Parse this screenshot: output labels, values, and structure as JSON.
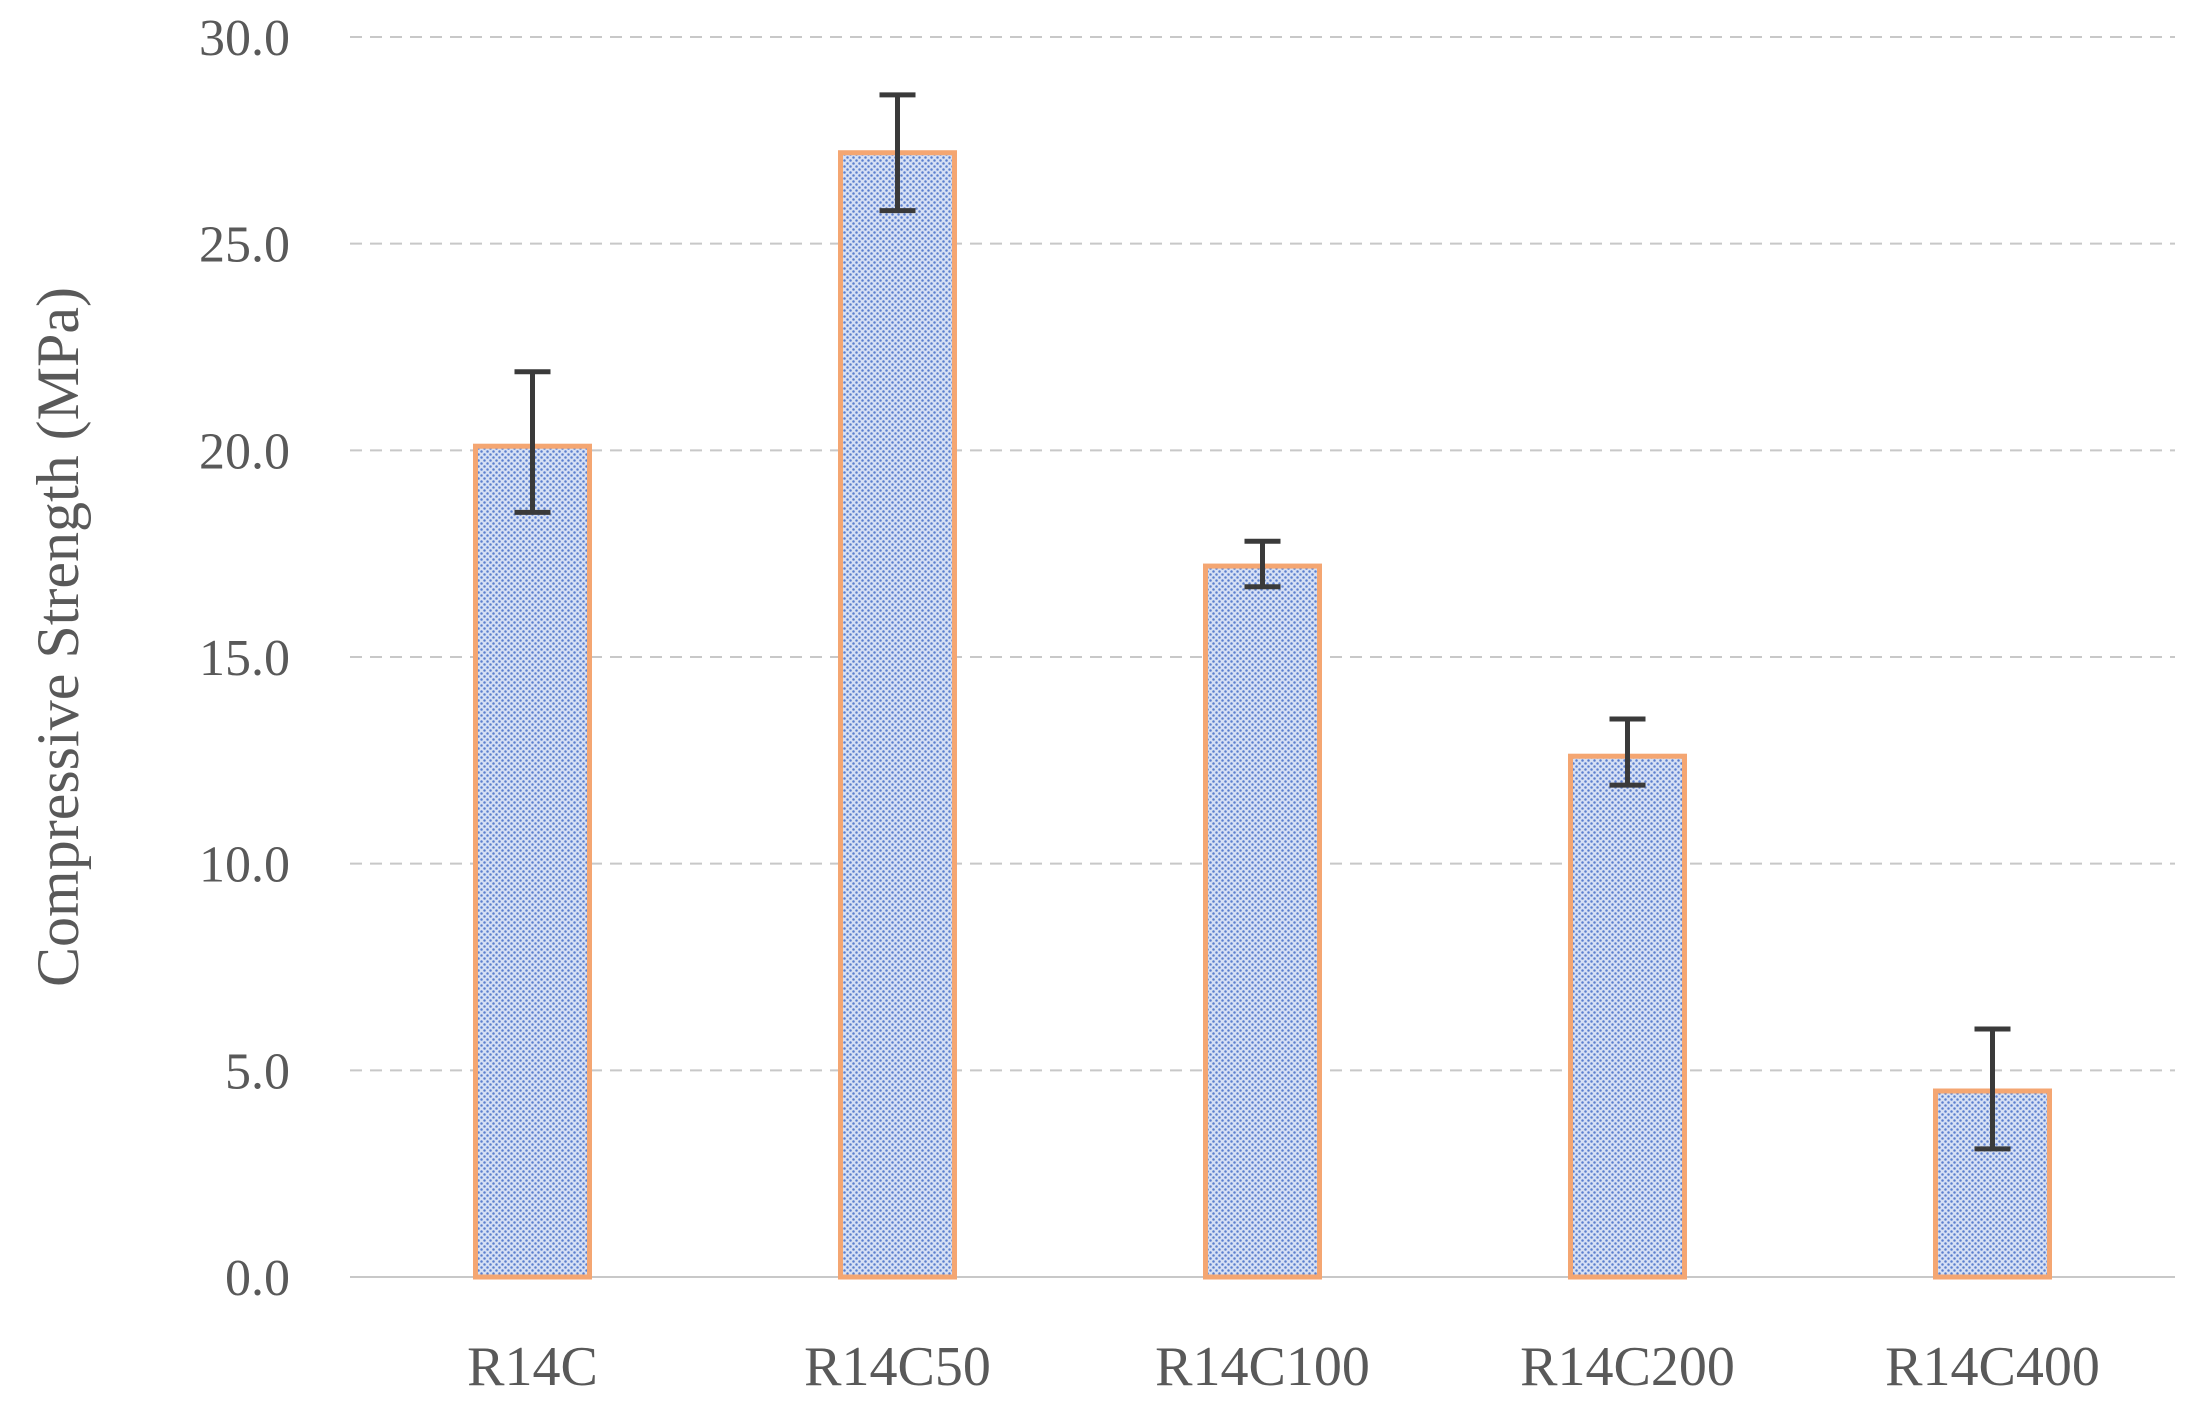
{
  "chart_data": {
    "type": "bar",
    "title": "",
    "xlabel": "",
    "ylabel": "Compressive Strength (MPa)",
    "ylim": [
      0,
      30
    ],
    "yticks": [
      "0.0",
      "5.0",
      "10.0",
      "15.0",
      "20.0",
      "25.0",
      "30.0"
    ],
    "categories": [
      "R14C",
      "R14C50",
      "R14C100",
      "R14C200",
      "R14C400"
    ],
    "values": [
      20.1,
      27.2,
      17.2,
      12.6,
      4.5
    ],
    "error_low": [
      18.5,
      25.8,
      16.7,
      11.9,
      3.1
    ],
    "error_high": [
      21.9,
      28.6,
      17.8,
      13.5,
      6.0
    ],
    "grid": "horizontal dashed",
    "legend": "none",
    "colors": {
      "bar_fill": "#d6e0f4",
      "bar_dots": "#5b7fce",
      "bar_outline": "#f4a672",
      "error_bar": "#3a3a3a",
      "grid": "#c8c8c8",
      "text": "#595959"
    }
  }
}
